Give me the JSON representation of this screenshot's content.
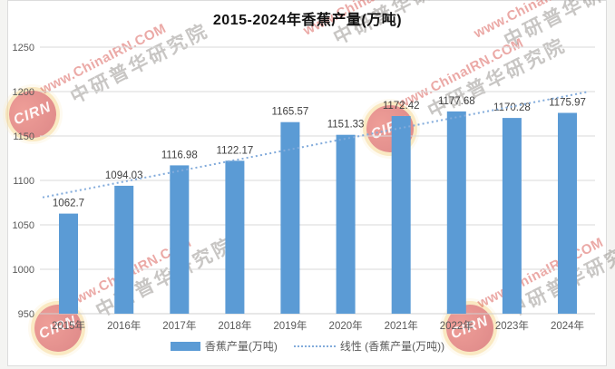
{
  "chart_data": {
    "type": "bar",
    "title": "2015-2024年香蕉产量(万吨)",
    "categories": [
      "2015年",
      "2016年",
      "2017年",
      "2018年",
      "2019年",
      "2020年",
      "2021年",
      "2022年",
      "2023年",
      "2024年"
    ],
    "series": [
      {
        "name": "香蕉产量(万吨)",
        "type": "bar",
        "color": "#5B9BD5",
        "values": [
          1062.7,
          1094.03,
          1116.98,
          1122.17,
          1165.57,
          1151.33,
          1172.42,
          1177.68,
          1170.28,
          1175.97
        ],
        "data_labels": [
          "1062.7",
          "1094.03",
          "1116.98",
          "1122.17",
          "1165.57",
          "1151.33",
          "1172.42",
          "1177.68",
          "1170.28",
          "1175.97"
        ]
      },
      {
        "name": "线性 (香蕉产量(万吨))",
        "type": "linear-trendline",
        "line_style": "dotted",
        "color": "#82ABDB"
      }
    ],
    "xlabel": "",
    "ylabel": "",
    "ylim": [
      950,
      1250
    ],
    "yticks": [
      950,
      1000,
      1050,
      1100,
      1150,
      1200,
      1250
    ],
    "grid": true,
    "legend_position": "bottom"
  },
  "watermark": {
    "logo_text": "CIRN",
    "url_text": "www.ChinaIRN.COM",
    "org_text": "中研普华研究院"
  },
  "colors": {
    "bar": "#5B9BD5",
    "trendline": "#82ABDB",
    "gridline": "#D9D9D9",
    "baseline": "#CFCFCF",
    "axis_text": "#595959",
    "label_text": "#3F3F3F",
    "frame_border": "#DCDCDC"
  }
}
